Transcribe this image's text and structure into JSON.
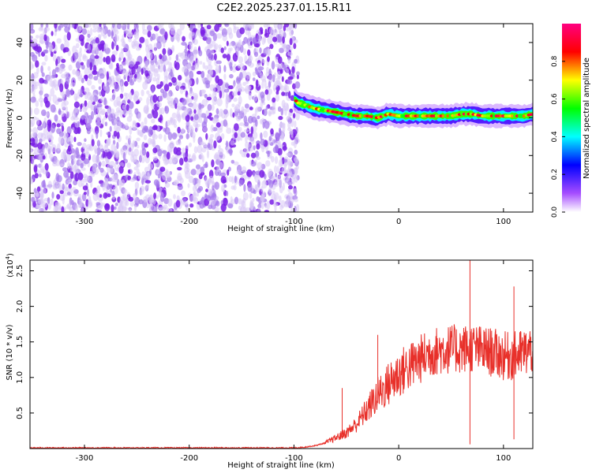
{
  "title": "C2E2.2025.237.01.15.R11",
  "chart_data": [
    {
      "type": "heatmap",
      "xlabel": "Height of straight line (km)",
      "ylabel": "Frequency (Hz)",
      "xlim": [
        -352,
        128
      ],
      "ylim": [
        -50,
        50
      ],
      "xticks": [
        -300,
        -200,
        -100,
        0,
        100
      ],
      "yticks": [
        -40,
        -20,
        0,
        20,
        40
      ],
      "noise_region": {
        "x_from": -352,
        "x_to": -96,
        "freq_range": [
          -50,
          50
        ],
        "typical_amplitude": 0.1
      },
      "ridge_line": {
        "description": "narrow-band signal after the noise region",
        "points": [
          [
            -100,
            10
          ],
          [
            -96,
            8
          ],
          [
            -90,
            7
          ],
          [
            -80,
            5
          ],
          [
            -70,
            4
          ],
          [
            -60,
            3
          ],
          [
            -50,
            2
          ],
          [
            -40,
            1
          ],
          [
            -30,
            1
          ],
          [
            -20,
            0
          ],
          [
            -10,
            2
          ],
          [
            0,
            1
          ],
          [
            10,
            1
          ],
          [
            20,
            1
          ],
          [
            30,
            1
          ],
          [
            40,
            1
          ],
          [
            50,
            1
          ],
          [
            60,
            2
          ],
          [
            70,
            2
          ],
          [
            80,
            1
          ],
          [
            90,
            1
          ],
          [
            100,
            1
          ],
          [
            110,
            1
          ],
          [
            120,
            1
          ],
          [
            128,
            2
          ]
        ],
        "peak_amplitude": 0.95
      },
      "colorbar": {
        "label": "Normalized spectral amplitude",
        "ticks": [
          "0.0",
          "0.2",
          "0.4",
          "0.6",
          "0.8"
        ],
        "range": [
          0,
          1
        ],
        "colors": [
          "#ffffff",
          "#8000ff",
          "#0000ff",
          "#00ffff",
          "#00ff00",
          "#ffff00",
          "#ff0000",
          "#ff0080"
        ]
      }
    },
    {
      "type": "line",
      "xlabel": "Height of straight line (km)",
      "ylabel": "SNR (10 * v/v)",
      "yscale_label": "(x10",
      "yscale_exp": "4",
      "xlim": [
        -352,
        128
      ],
      "ylim": [
        0,
        2.65
      ],
      "xticks": [
        -300,
        -200,
        -100,
        0,
        100
      ],
      "yticks": [
        "0.5",
        "1.0",
        "1.5",
        "2.0",
        "2.5"
      ],
      "color": "#e8302a",
      "series": [
        {
          "name": "SNR",
          "x": [
            -352,
            -100,
            -90,
            -80,
            -70,
            -60,
            -50,
            -40,
            -30,
            -20,
            -10,
            0,
            10,
            20,
            30,
            40,
            50,
            60,
            70,
            80,
            90,
            100,
            110,
            120,
            128
          ],
          "y": [
            0.01,
            0.01,
            0.02,
            0.04,
            0.08,
            0.15,
            0.22,
            0.35,
            0.55,
            0.75,
            0.9,
            1.05,
            1.15,
            1.25,
            1.35,
            1.38,
            1.4,
            1.4,
            1.42,
            1.38,
            1.35,
            1.3,
            1.3,
            1.35,
            1.4
          ]
        }
      ],
      "annotated_peaks": [
        [
          -54,
          0.85
        ],
        [
          -20,
          1.6
        ],
        [
          68,
          2.65
        ],
        [
          68,
          0.06
        ],
        [
          110,
          2.28
        ],
        [
          110,
          0.13
        ]
      ]
    }
  ]
}
